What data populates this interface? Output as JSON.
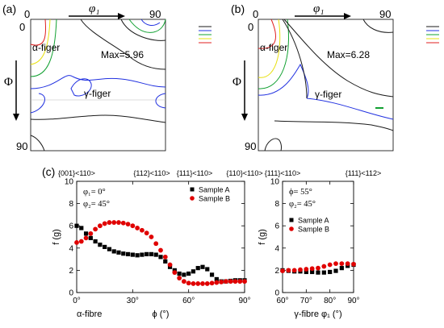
{
  "odf_panels": [
    {
      "label": "(a)",
      "phi1_label": "φ₁",
      "phi1_start": "0",
      "phi1_end": "90",
      "Phi_label": "Φ",
      "Phi_start": "0",
      "Phi_end": "90",
      "max_text": "Max=5.96",
      "alpha_label": "α-figer",
      "gamma_label": "γ-figer"
    },
    {
      "label": "(b)",
      "phi1_label": "φ₁",
      "phi1_start": "0",
      "phi1_end": "90",
      "Phi_label": "Φ",
      "Phi_start": "0",
      "Phi_end": "90",
      "max_text": "Max=6.28",
      "alpha_label": "α-figer",
      "gamma_label": "γ-figer"
    }
  ],
  "contour_colors": [
    "#1a1a1a",
    "#2030e0",
    "#10a030",
    "#e8e010",
    "#e02020"
  ],
  "panel_c_label": "(c)",
  "chart_data": [
    {
      "type": "scatter",
      "xlabel": "α-fibre",
      "xaxis_title": "ϕ (°)",
      "ylabel": "f (g)",
      "xlim": [
        0,
        90
      ],
      "ylim": [
        0,
        10
      ],
      "xticks": [
        0,
        30,
        60,
        90
      ],
      "yticks": [
        0,
        2,
        4,
        6,
        8,
        10
      ],
      "top_labels": [
        "{001}<110>",
        "{112}<110>",
        "{111}<110>",
        "{110}<110>"
      ],
      "annotation_lines": [
        "φ₁= 0°",
        "φ₂= 45°"
      ],
      "legend_position": "top-right",
      "series": [
        {
          "name": "Sample A",
          "marker": "square",
          "color": "#000000",
          "x": [
            0,
            2.5,
            5,
            7.5,
            10,
            12.5,
            15,
            17.5,
            20,
            22.5,
            25,
            27.5,
            30,
            32.5,
            35,
            37.5,
            40,
            42.5,
            45,
            47.5,
            50,
            52.5,
            55,
            57.5,
            60,
            62.5,
            65,
            67.5,
            70,
            72.5,
            75,
            77.5,
            80,
            82.5,
            85,
            87.5,
            90
          ],
          "y": [
            6.0,
            5.8,
            5.3,
            4.9,
            4.6,
            4.3,
            4.1,
            3.9,
            3.7,
            3.6,
            3.5,
            3.45,
            3.4,
            3.35,
            3.4,
            3.45,
            3.45,
            3.4,
            3.2,
            2.8,
            2.3,
            2.0,
            1.7,
            1.6,
            1.7,
            1.9,
            2.2,
            2.3,
            2.1,
            1.6,
            1.2,
            1.0,
            1.0,
            1.05,
            1.1,
            1.1,
            1.1
          ]
        },
        {
          "name": "Sample B",
          "marker": "circle",
          "color": "#e00000",
          "x": [
            0,
            2.5,
            5,
            7.5,
            10,
            12.5,
            15,
            17.5,
            20,
            22.5,
            25,
            27.5,
            30,
            32.5,
            35,
            37.5,
            40,
            42.5,
            45,
            47.5,
            50,
            52.5,
            55,
            57.5,
            60,
            62.5,
            65,
            67.5,
            70,
            72.5,
            75,
            77.5,
            80,
            82.5,
            85,
            87.5,
            90
          ],
          "y": [
            4.5,
            4.6,
            4.9,
            5.3,
            5.7,
            6.0,
            6.2,
            6.3,
            6.3,
            6.3,
            6.25,
            6.15,
            6.0,
            5.8,
            5.6,
            5.35,
            5.0,
            4.4,
            3.8,
            3.2,
            2.5,
            1.8,
            1.3,
            1.0,
            0.85,
            0.8,
            0.8,
            0.8,
            0.8,
            0.85,
            0.9,
            0.95,
            1.0,
            1.0,
            1.0,
            1.0,
            1.0
          ]
        }
      ]
    },
    {
      "type": "scatter",
      "xlabel": "γ-fibre φ₁ (°)",
      "ylabel": "f (g)",
      "xlim": [
        60,
        90
      ],
      "ylim": [
        0,
        10
      ],
      "xticks": [
        60,
        70,
        80,
        90
      ],
      "yticks": [
        0,
        2,
        4,
        6,
        8,
        10
      ],
      "top_labels": [
        "{111}<110>",
        "{111}<112>"
      ],
      "annotation_lines": [
        "ϕ= 55°",
        "φ₂= 45°"
      ],
      "legend_position": "center-right",
      "series": [
        {
          "name": "Sample A",
          "marker": "square",
          "color": "#000000",
          "x": [
            60,
            62.5,
            65,
            67.5,
            70,
            72.5,
            75,
            77.5,
            80,
            82.5,
            85,
            87.5,
            90
          ],
          "y": [
            2.0,
            1.95,
            1.9,
            1.9,
            1.85,
            1.85,
            1.8,
            1.8,
            1.85,
            1.95,
            2.2,
            2.4,
            2.5
          ]
        },
        {
          "name": "Sample B",
          "marker": "circle",
          "color": "#e00000",
          "x": [
            60,
            62.5,
            65,
            67.5,
            70,
            72.5,
            75,
            77.5,
            80,
            82.5,
            85,
            87.5,
            90
          ],
          "y": [
            1.95,
            2.0,
            2.0,
            2.05,
            2.1,
            2.15,
            2.2,
            2.35,
            2.5,
            2.6,
            2.6,
            2.6,
            2.55
          ]
        }
      ]
    }
  ]
}
